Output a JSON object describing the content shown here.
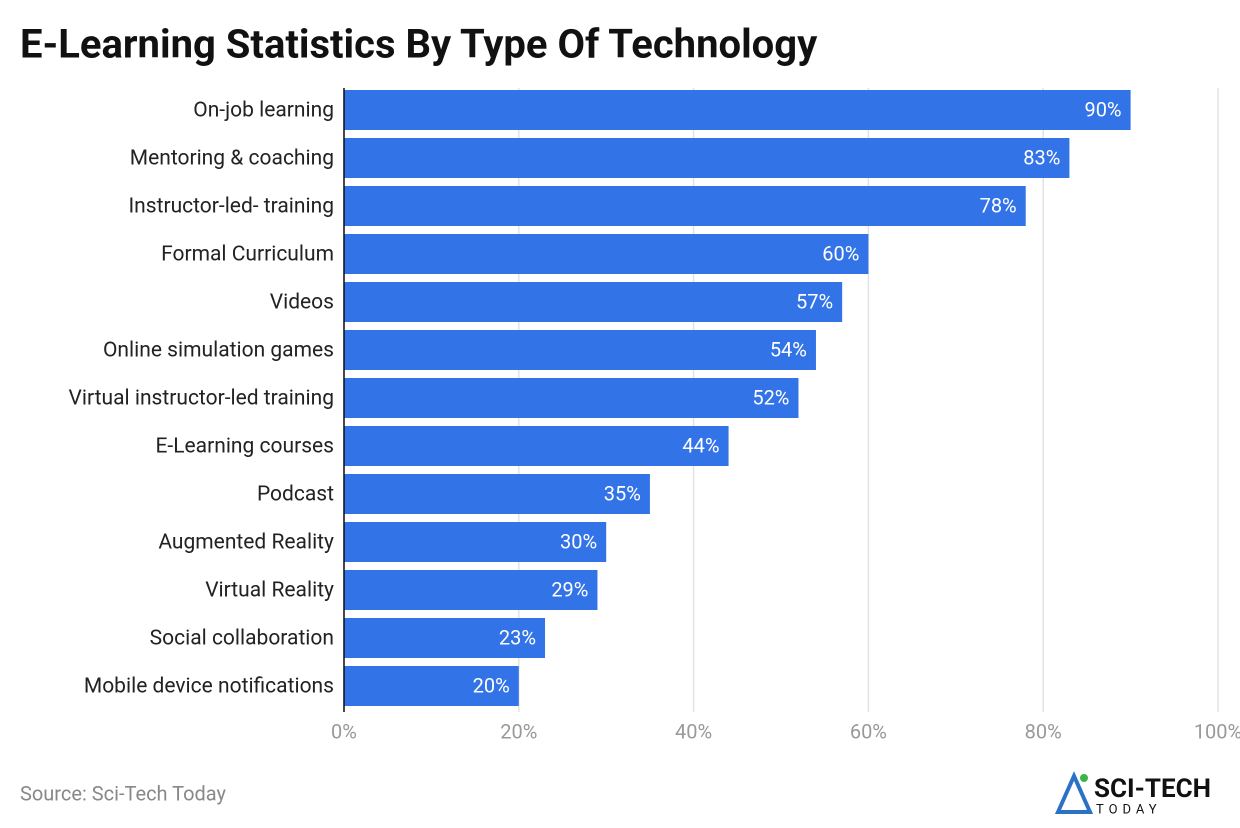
{
  "chart_data": {
    "type": "bar",
    "orientation": "horizontal",
    "title": "E-Learning Statistics By Type Of Technology",
    "categories": [
      "On-job learning",
      "Mentoring & coaching",
      "Instructor-led- training",
      "Formal Curriculum",
      "Videos",
      "Online simulation games",
      "Virtual instructor-led training",
      "E-Learning courses",
      "Podcast",
      "Augmented Reality",
      "Virtual Reality",
      "Social collaboration",
      "Mobile device notifications"
    ],
    "values": [
      90,
      83,
      78,
      60,
      57,
      54,
      52,
      44,
      35,
      30,
      29,
      23,
      20
    ],
    "value_labels": [
      "90%",
      "83%",
      "78%",
      "60%",
      "57%",
      "54%",
      "52%",
      "44%",
      "35%",
      "30%",
      "29%",
      "23%",
      "20%"
    ],
    "color": "#3373e8",
    "xlim": [
      0,
      100
    ],
    "xticks": [
      {
        "value": 0,
        "label": "0%"
      },
      {
        "value": 20,
        "label": "20%"
      },
      {
        "value": 40,
        "label": "40%"
      },
      {
        "value": 60,
        "label": "60%"
      },
      {
        "value": 80,
        "label": "80%"
      },
      {
        "value": 100,
        "label": "100%"
      }
    ],
    "grid": true,
    "source": "Source: Sci-Tech Today"
  },
  "logo": {
    "name": "SCI-TECH",
    "tagline": "TODAY"
  }
}
